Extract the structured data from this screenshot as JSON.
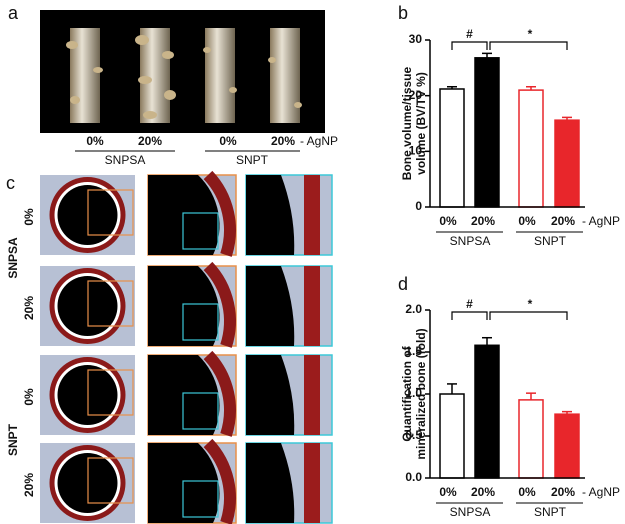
{
  "panel_a": {
    "label": "a",
    "categories": [
      "0%",
      "20%",
      "0%",
      "20%"
    ],
    "annotation": "- AgNP",
    "groups": [
      "SNPSA",
      "SNPT"
    ]
  },
  "panel_c": {
    "label": "c",
    "groups": [
      "SNPSA",
      "SNPT"
    ],
    "rows": [
      "0%",
      "20%",
      "0%",
      "20%"
    ]
  },
  "chart_data": [
    {
      "type": "bar",
      "panel_label": "b",
      "ylabel": [
        "Bone volume/tissue",
        "volume (BV/TV %)"
      ],
      "categories": [
        "0%",
        "20%",
        "0%",
        "20%"
      ],
      "x_annotation": "- AgNP",
      "groups": [
        "SNPSA",
        "SNPT"
      ],
      "values": [
        21.2,
        26.8,
        21.0,
        15.6
      ],
      "errors": [
        0.4,
        0.8,
        0.6,
        0.5
      ],
      "colors": [
        "#ffffff",
        "#000000",
        "#ffffff",
        "#e8262b"
      ],
      "edge_colors": [
        "#000000",
        "#000000",
        "#e8262b",
        "#e8262b"
      ],
      "annotations": [
        "#",
        "*"
      ],
      "ylim": [
        0,
        30
      ],
      "yticks": [
        0,
        10,
        20,
        30
      ]
    },
    {
      "type": "bar",
      "panel_label": "d",
      "ylabel": [
        "Quantification of",
        "mineralized bone (fold)"
      ],
      "categories": [
        "0%",
        "20%",
        "0%",
        "20%"
      ],
      "x_annotation": "- AgNP",
      "groups": [
        "SNPSA",
        "SNPT"
      ],
      "values": [
        1.0,
        1.58,
        0.93,
        0.76
      ],
      "errors": [
        0.12,
        0.09,
        0.08,
        0.03
      ],
      "colors": [
        "#ffffff",
        "#000000",
        "#ffffff",
        "#e8262b"
      ],
      "edge_colors": [
        "#000000",
        "#000000",
        "#e8262b",
        "#e8262b"
      ],
      "annotations": [
        "#",
        "*"
      ],
      "ylim": [
        0,
        2.0
      ],
      "yticks": [
        {
          "value": 0,
          "label": "0.0"
        },
        0.5,
        {
          "value": 1,
          "label": "1.0"
        },
        1.5,
        {
          "value": 2,
          "label": "2.0"
        }
      ]
    }
  ]
}
